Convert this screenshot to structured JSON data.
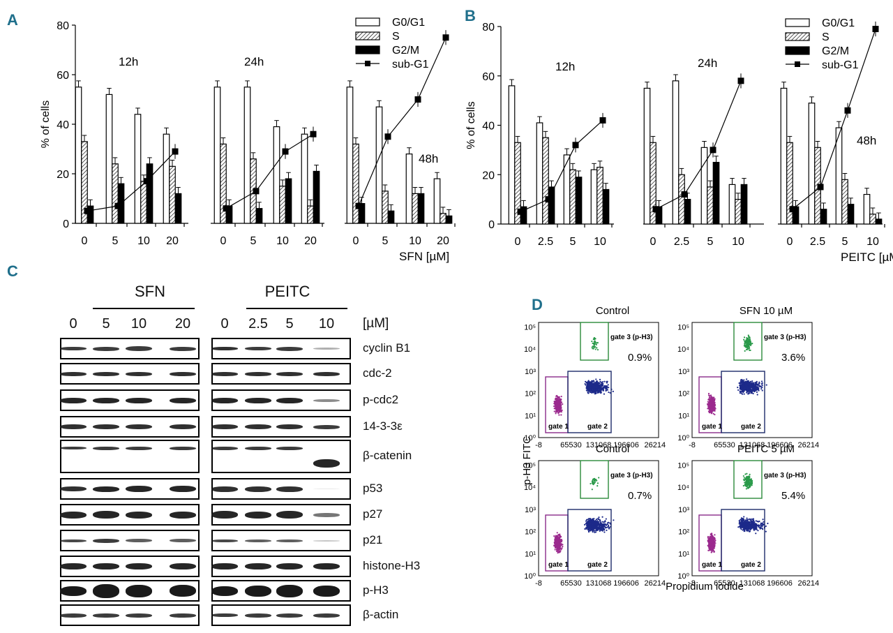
{
  "panels": [
    "A",
    "B",
    "C",
    "D"
  ],
  "legend": [
    "G0/G1",
    "S",
    "G2/M",
    "sub-G1"
  ],
  "panelA": {
    "ylabel": "% of cells",
    "yticks": [
      "0",
      "20",
      "40",
      "60",
      "80"
    ],
    "xlabel": "SFN [µM]",
    "time_labels": [
      "12h",
      "24h",
      "48h"
    ]
  },
  "panelB": {
    "ylabel": "% of cells",
    "yticks": [
      "0",
      "20",
      "40",
      "60",
      "80"
    ],
    "xlabel": "PEITC [µM]",
    "time_labels": [
      "12h",
      "24h",
      "48h"
    ]
  },
  "chart_data": [
    {
      "type": "bar",
      "panel": "A",
      "title": "",
      "xlabel": "SFN [µM]",
      "ylabel": "% of cells",
      "ylim": [
        0,
        80
      ],
      "categories": [
        "0",
        "5",
        "10",
        "20",
        "0",
        "5",
        "10",
        "20",
        "0",
        "5",
        "10",
        "20"
      ],
      "groups": [
        "12h",
        "24h",
        "48h"
      ],
      "series": [
        {
          "name": "G0/G1",
          "values": [
            55,
            52,
            44,
            36,
            55,
            55,
            39,
            36,
            55,
            47,
            28,
            18
          ]
        },
        {
          "name": "S",
          "values": [
            33,
            24,
            17,
            23,
            32,
            26,
            15,
            7,
            32,
            13,
            12,
            4
          ]
        },
        {
          "name": "G2/M",
          "values": [
            7,
            16,
            24,
            12,
            7,
            6,
            18,
            21,
            8,
            5,
            12,
            3
          ]
        },
        {
          "name": "sub-G1",
          "values": [
            5,
            7,
            17,
            29,
            6,
            13,
            29,
            36,
            7,
            35,
            50,
            75
          ]
        }
      ]
    },
    {
      "type": "bar",
      "panel": "B",
      "title": "",
      "xlabel": "PEITC [µM]",
      "ylabel": "% of cells",
      "ylim": [
        0,
        80
      ],
      "categories": [
        "0",
        "2.5",
        "5",
        "10",
        "0",
        "2.5",
        "5",
        "10",
        "0",
        "2.5",
        "5",
        "10"
      ],
      "groups": [
        "12h",
        "24h",
        "48h"
      ],
      "series": [
        {
          "name": "G0/G1",
          "values": [
            56,
            41,
            28,
            22,
            55,
            58,
            31,
            16,
            55,
            49,
            39,
            12
          ]
        },
        {
          "name": "S",
          "values": [
            33,
            35,
            22,
            23,
            33,
            20,
            15,
            10,
            33,
            31,
            18,
            4
          ]
        },
        {
          "name": "G2/M",
          "values": [
            7,
            15,
            19,
            14,
            7,
            10,
            25,
            16,
            7,
            6,
            8,
            2
          ]
        },
        {
          "name": "sub-G1",
          "values": [
            5,
            10,
            32,
            42,
            6,
            12,
            30,
            58,
            6,
            15,
            46,
            79
          ]
        }
      ]
    }
  ],
  "panelC": {
    "groups": [
      "SFN",
      "PEITC"
    ],
    "unit": "[µM]",
    "sfn_doses": [
      "0",
      "5",
      "10",
      "20"
    ],
    "peitc_doses": [
      "0",
      "2.5",
      "5",
      "10"
    ],
    "proteins": [
      "cyclin B1",
      "cdc-2",
      "p-cdc2",
      "14-3-3ε",
      "β-catenin",
      "p53",
      "p27",
      "p21",
      "histone-H3",
      "p-H3",
      "β-actin"
    ]
  },
  "panelD": {
    "ylabel": "p-H3 FITC",
    "xlabel": "Propidium iodide",
    "xticks": [
      "-8",
      "65530",
      "131068",
      "196606",
      "26214"
    ],
    "yticks": [
      "10⁰",
      "10¹",
      "10²",
      "10³",
      "10⁴",
      "10⁵"
    ],
    "gates": [
      "gate 1",
      "gate 2",
      "gate 3 (p-H3)"
    ],
    "plots": [
      {
        "title": "Control",
        "percent": "0.9%"
      },
      {
        "title": "SFN 10 µM",
        "percent": "3.6%"
      },
      {
        "title": "Control",
        "percent": "0.7%"
      },
      {
        "title": "PEITC 5 µM",
        "percent": "5.4%"
      }
    ]
  }
}
